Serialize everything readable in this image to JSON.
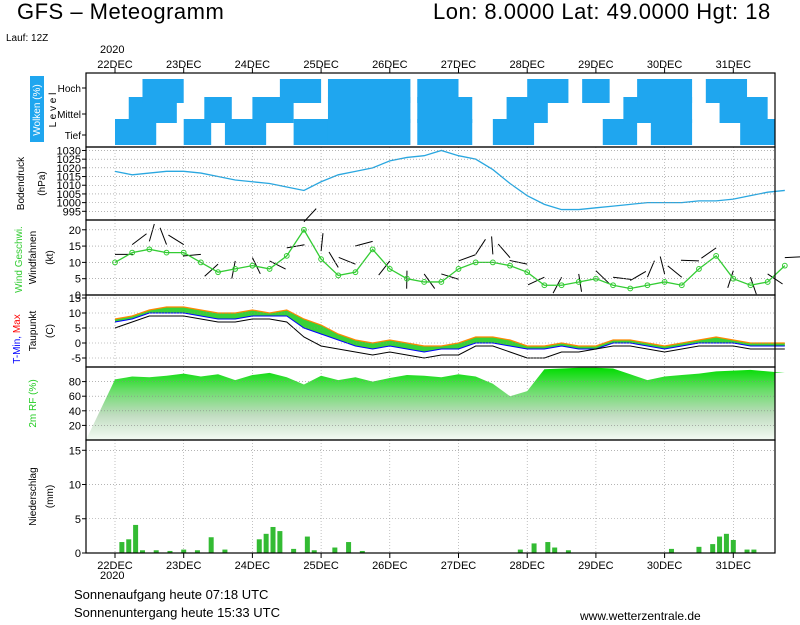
{
  "header": {
    "title": "GFS – Meteogramm",
    "location": "Lon: 8.0000  Lat: 49.0000  Hgt: 18",
    "run": "Lauf: 12Z",
    "year": "2020"
  },
  "dates": [
    "22DEC",
    "23DEC",
    "24DEC",
    "25DEC",
    "26DEC",
    "27DEC",
    "28DEC",
    "29DEC",
    "30DEC",
    "31DEC"
  ],
  "footer": {
    "sunrise": "Sonnenaufgang heute 07:18 UTC",
    "sunset": "Sonnenuntergang heute 15:33 UTC",
    "website": "www.wetterzentrale.de"
  },
  "colors": {
    "clouds": "#1fa6ef",
    "pressure_line": "#2aa7e0",
    "wind_green": "#33cc33",
    "tmax": "#ff0000",
    "tmin": "#0000ff",
    "rh_green": "#22cc22",
    "precip": "#33bb33"
  },
  "chart_data": [
    {
      "type": "heatmap",
      "ylabel": "Wolken (%)",
      "level_caption": "L e v e l",
      "levels": [
        "Hoch",
        "Mittel",
        "Tief"
      ],
      "cloud_blocks": [
        {
          "start": 0.0,
          "end": 0.6,
          "level": "Tief"
        },
        {
          "start": 0.2,
          "end": 0.9,
          "level": "Mittel"
        },
        {
          "start": 0.4,
          "end": 1.0,
          "level": "Hoch"
        },
        {
          "start": 1.0,
          "end": 1.4,
          "level": "Tief"
        },
        {
          "start": 1.3,
          "end": 1.7,
          "level": "Mittel"
        },
        {
          "start": 1.6,
          "end": 2.2,
          "level": "Tief"
        },
        {
          "start": 2.0,
          "end": 2.6,
          "level": "Mittel"
        },
        {
          "start": 2.4,
          "end": 3.0,
          "level": "Hoch"
        },
        {
          "start": 2.6,
          "end": 3.2,
          "level": "Tief"
        },
        {
          "start": 3.1,
          "end": 4.3,
          "level": "Tief"
        },
        {
          "start": 3.1,
          "end": 4.3,
          "level": "Mittel"
        },
        {
          "start": 3.1,
          "end": 4.3,
          "level": "Hoch"
        },
        {
          "start": 4.4,
          "end": 5.2,
          "level": "Tief"
        },
        {
          "start": 4.4,
          "end": 5.2,
          "level": "Mittel"
        },
        {
          "start": 4.4,
          "end": 5.0,
          "level": "Hoch"
        },
        {
          "start": 5.5,
          "end": 6.1,
          "level": "Tief"
        },
        {
          "start": 5.7,
          "end": 6.3,
          "level": "Mittel"
        },
        {
          "start": 6.0,
          "end": 6.6,
          "level": "Hoch"
        },
        {
          "start": 6.8,
          "end": 7.2,
          "level": "Hoch"
        },
        {
          "start": 7.1,
          "end": 7.6,
          "level": "Tief"
        },
        {
          "start": 7.4,
          "end": 8.4,
          "level": "Mittel"
        },
        {
          "start": 7.8,
          "end": 8.4,
          "level": "Tief"
        },
        {
          "start": 7.6,
          "end": 8.4,
          "level": "Hoch"
        },
        {
          "start": 8.6,
          "end": 9.2,
          "level": "Hoch"
        },
        {
          "start": 8.8,
          "end": 9.5,
          "level": "Mittel"
        },
        {
          "start": 9.1,
          "end": 9.6,
          "level": "Tief"
        }
      ]
    },
    {
      "type": "line",
      "ylabel": "Bodendruck",
      "unit": "(hPa)",
      "yticks": [
        995,
        1000,
        1005,
        1010,
        1015,
        1020,
        1025,
        1030
      ],
      "ylim": [
        990,
        1032
      ],
      "x": [
        0,
        0.25,
        0.5,
        0.75,
        1.0,
        1.25,
        1.5,
        1.75,
        2.0,
        2.25,
        2.5,
        2.75,
        3.0,
        3.25,
        3.5,
        3.75,
        4.0,
        4.25,
        4.5,
        4.75,
        5.0,
        5.25,
        5.5,
        5.75,
        6.0,
        6.25,
        6.5,
        6.75,
        7.0,
        7.25,
        7.5,
        7.75,
        8.0,
        8.25,
        8.5,
        8.75,
        9.0,
        9.25,
        9.5,
        9.75
      ],
      "values": [
        1018,
        1016,
        1017,
        1018,
        1018,
        1017,
        1015,
        1013,
        1012,
        1011,
        1009,
        1007,
        1012,
        1016,
        1018,
        1020,
        1024,
        1026,
        1027,
        1030,
        1027,
        1025,
        1019,
        1011,
        1004,
        999,
        996,
        996,
        997,
        998,
        999,
        1000,
        1000,
        1000,
        1001,
        1001,
        1002,
        1004,
        1006,
        1007
      ]
    },
    {
      "type": "line",
      "ylabel": "Wind Geschwi.",
      "ylabel2": "Windfahnen",
      "unit": "(kt)",
      "yticks": [
        0,
        5,
        10,
        15,
        20
      ],
      "ylim": [
        0,
        23
      ],
      "x": [
        0,
        0.25,
        0.5,
        0.75,
        1.0,
        1.25,
        1.5,
        1.75,
        2.0,
        2.25,
        2.5,
        2.75,
        3.0,
        3.25,
        3.5,
        3.75,
        4.0,
        4.25,
        4.5,
        4.75,
        5.0,
        5.25,
        5.5,
        5.75,
        6.0,
        6.25,
        6.5,
        6.75,
        7.0,
        7.25,
        7.5,
        7.75,
        8.0,
        8.25,
        8.5,
        8.75,
        9.0,
        9.25,
        9.5,
        9.75
      ],
      "values": [
        10,
        13,
        14,
        13,
        13,
        10,
        7,
        8,
        9,
        8,
        12,
        20,
        11,
        6,
        7,
        14,
        8,
        5,
        4,
        4,
        8,
        10,
        10,
        9,
        7,
        3,
        3,
        4,
        5,
        3,
        2,
        3,
        4,
        3,
        8,
        12,
        5,
        3,
        4,
        9
      ]
    },
    {
      "type": "line",
      "ylabel": "T-Min, Max",
      "ylabel_min": "T-Min,",
      "ylabel_max": "Max",
      "ylabel2": "Taupunkt",
      "unit": "(C)",
      "yticks": [
        -5,
        0,
        5,
        10,
        15
      ],
      "ylim": [
        -8,
        16
      ],
      "x": [
        0,
        0.25,
        0.5,
        0.75,
        1.0,
        1.25,
        1.5,
        1.75,
        2.0,
        2.25,
        2.5,
        2.75,
        3.0,
        3.25,
        3.5,
        3.75,
        4.0,
        4.25,
        4.5,
        4.75,
        5.0,
        5.25,
        5.5,
        5.75,
        6.0,
        6.25,
        6.5,
        6.75,
        7.0,
        7.25,
        7.5,
        7.75,
        8.0,
        8.25,
        8.5,
        8.75,
        9.0,
        9.25,
        9.5,
        9.75
      ],
      "series": [
        {
          "name": "Max",
          "values": [
            8,
            9,
            11,
            12,
            12,
            11,
            10,
            10,
            11,
            10,
            11,
            8,
            6,
            3,
            1,
            0,
            1,
            0,
            -1,
            -1,
            0,
            2,
            2,
            1,
            -1,
            -1,
            0,
            -1,
            -1,
            1,
            1,
            0,
            -1,
            0,
            1,
            2,
            1,
            0,
            0,
            0
          ]
        },
        {
          "name": "Min",
          "values": [
            7,
            8,
            10,
            10,
            10,
            9,
            8,
            8,
            9,
            9,
            9,
            5,
            3,
            1,
            -1,
            -2,
            -1,
            -2,
            -3,
            -2,
            -2,
            0,
            0,
            -1,
            -2,
            -2,
            -1,
            -2,
            -2,
            0,
            0,
            -1,
            -2,
            -1,
            0,
            0,
            0,
            -1,
            -1,
            -1
          ]
        },
        {
          "name": "Taupunkt",
          "values": [
            5,
            7,
            9,
            9,
            9,
            8,
            7,
            7,
            8,
            8,
            7,
            2,
            -1,
            -2,
            -3,
            -4,
            -3,
            -4,
            -5,
            -4,
            -4,
            -1,
            -1,
            -3,
            -5,
            -5,
            -3,
            -3,
            -2,
            -1,
            -1,
            -2,
            -3,
            -2,
            -1,
            -1,
            -1,
            -2,
            -2,
            -2
          ]
        }
      ]
    },
    {
      "type": "area",
      "ylabel": "2m RF (%)",
      "yticks": [
        20,
        40,
        60,
        80
      ],
      "ylim": [
        0,
        100
      ],
      "x": [
        0,
        0.25,
        0.5,
        0.75,
        1.0,
        1.25,
        1.5,
        1.75,
        2.0,
        2.25,
        2.5,
        2.75,
        3.0,
        3.25,
        3.5,
        3.75,
        4.0,
        4.25,
        4.5,
        4.75,
        5.0,
        5.25,
        5.5,
        5.75,
        6.0,
        6.25,
        6.5,
        6.75,
        7.0,
        7.25,
        7.5,
        7.75,
        8.0,
        8.25,
        8.5,
        8.75,
        9.0,
        9.25,
        9.5,
        9.75
      ],
      "values": [
        83,
        87,
        86,
        88,
        91,
        87,
        90,
        82,
        89,
        92,
        86,
        76,
        88,
        82,
        86,
        80,
        85,
        89,
        88,
        86,
        90,
        87,
        77,
        60,
        67,
        97,
        98,
        99,
        99,
        98,
        90,
        82,
        87,
        89,
        91,
        94,
        95,
        96,
        94,
        92
      ]
    },
    {
      "type": "bar",
      "ylabel": "Niederschlag",
      "unit": "(mm)",
      "yticks": [
        0,
        5,
        10,
        15
      ],
      "ylim": [
        0,
        16.5
      ],
      "x": [
        0.1,
        0.2,
        0.3,
        0.4,
        0.6,
        0.8,
        1.0,
        1.2,
        1.4,
        1.6,
        2.1,
        2.2,
        2.3,
        2.4,
        2.6,
        2.8,
        2.9,
        3.2,
        3.4,
        3.6,
        5.9,
        6.1,
        6.3,
        6.4,
        6.6,
        8.1,
        8.5,
        8.7,
        8.8,
        8.9,
        9.0,
        9.2,
        9.3
      ],
      "values": [
        1.6,
        2.0,
        4.1,
        0.4,
        0.4,
        0.3,
        0.5,
        0.4,
        2.3,
        0.5,
        2.0,
        2.8,
        3.8,
        3.2,
        0.6,
        2.4,
        0.4,
        0.8,
        1.6,
        0.3,
        0.5,
        1.4,
        1.6,
        0.8,
        0.4,
        0.6,
        0.9,
        1.3,
        2.4,
        2.8,
        1.9,
        0.5,
        0.5
      ]
    }
  ]
}
